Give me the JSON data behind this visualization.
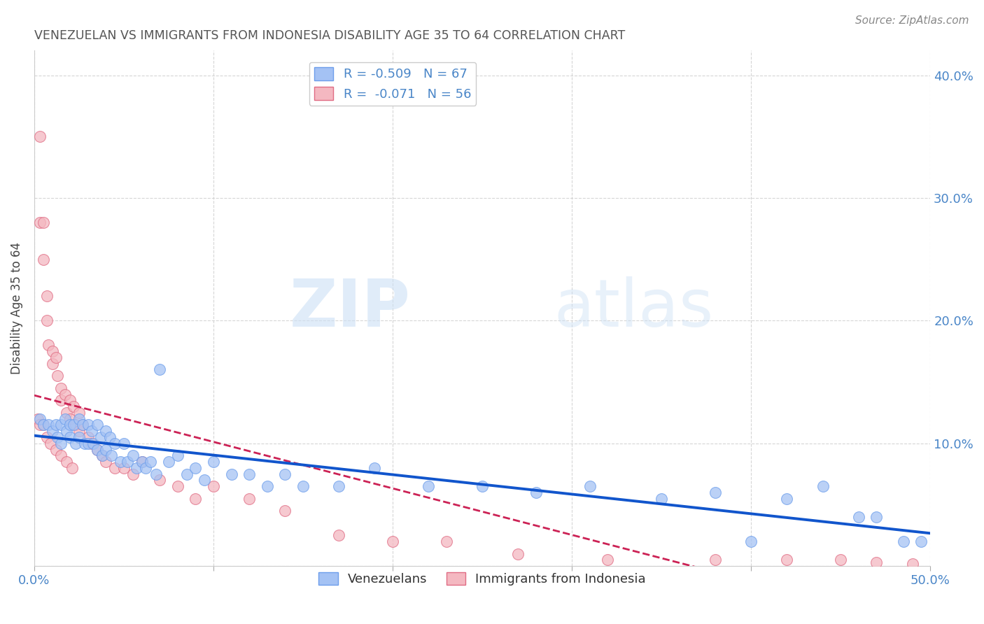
{
  "title": "VENEZUELAN VS IMMIGRANTS FROM INDONESIA DISABILITY AGE 35 TO 64 CORRELATION CHART",
  "source": "Source: ZipAtlas.com",
  "ylabel": "Disability Age 35 to 64",
  "xlim": [
    0.0,
    0.5
  ],
  "ylim": [
    0.0,
    0.42
  ],
  "blue_color": "#a4c2f4",
  "blue_edge": "#6d9eeb",
  "pink_color": "#f4b8c1",
  "pink_edge": "#e06c84",
  "blue_line_color": "#1155cc",
  "pink_line_color": "#cc2255",
  "legend_blue_label": "R = -0.509   N = 67",
  "legend_pink_label": "R =  -0.071   N = 56",
  "venezualan_label": "Venezuelans",
  "indonesia_label": "Immigrants from Indonesia",
  "watermark_zip": "ZIP",
  "watermark_atlas": "atlas",
  "title_color": "#555555",
  "axis_color": "#4a86c8",
  "venezuelan_x": [
    0.003,
    0.005,
    0.008,
    0.01,
    0.012,
    0.013,
    0.015,
    0.015,
    0.017,
    0.018,
    0.02,
    0.02,
    0.022,
    0.023,
    0.025,
    0.025,
    0.027,
    0.028,
    0.03,
    0.03,
    0.032,
    0.033,
    0.035,
    0.035,
    0.037,
    0.038,
    0.04,
    0.04,
    0.042,
    0.043,
    0.045,
    0.048,
    0.05,
    0.052,
    0.055,
    0.057,
    0.06,
    0.062,
    0.065,
    0.068,
    0.07,
    0.075,
    0.08,
    0.085,
    0.09,
    0.095,
    0.1,
    0.11,
    0.12,
    0.13,
    0.14,
    0.15,
    0.17,
    0.19,
    0.22,
    0.25,
    0.28,
    0.31,
    0.35,
    0.38,
    0.4,
    0.42,
    0.44,
    0.46,
    0.47,
    0.485,
    0.495
  ],
  "venezuelan_y": [
    0.12,
    0.115,
    0.115,
    0.11,
    0.115,
    0.105,
    0.115,
    0.1,
    0.12,
    0.11,
    0.115,
    0.105,
    0.115,
    0.1,
    0.12,
    0.105,
    0.115,
    0.1,
    0.115,
    0.1,
    0.11,
    0.1,
    0.115,
    0.095,
    0.105,
    0.09,
    0.11,
    0.095,
    0.105,
    0.09,
    0.1,
    0.085,
    0.1,
    0.085,
    0.09,
    0.08,
    0.085,
    0.08,
    0.085,
    0.075,
    0.16,
    0.085,
    0.09,
    0.075,
    0.08,
    0.07,
    0.085,
    0.075,
    0.075,
    0.065,
    0.075,
    0.065,
    0.065,
    0.08,
    0.065,
    0.065,
    0.06,
    0.065,
    0.055,
    0.06,
    0.02,
    0.055,
    0.065,
    0.04,
    0.04,
    0.02,
    0.02
  ],
  "indonesian_x": [
    0.003,
    0.003,
    0.005,
    0.005,
    0.007,
    0.007,
    0.008,
    0.01,
    0.01,
    0.012,
    0.013,
    0.015,
    0.015,
    0.017,
    0.018,
    0.02,
    0.02,
    0.022,
    0.023,
    0.025,
    0.025,
    0.027,
    0.03,
    0.032,
    0.035,
    0.038,
    0.04,
    0.045,
    0.05,
    0.055,
    0.06,
    0.07,
    0.08,
    0.09,
    0.1,
    0.12,
    0.14,
    0.17,
    0.2,
    0.23,
    0.27,
    0.32,
    0.38,
    0.42,
    0.45,
    0.47,
    0.49,
    0.002,
    0.003,
    0.005,
    0.007,
    0.009,
    0.012,
    0.015,
    0.018,
    0.021
  ],
  "indonesian_y": [
    0.35,
    0.28,
    0.28,
    0.25,
    0.22,
    0.2,
    0.18,
    0.175,
    0.165,
    0.17,
    0.155,
    0.145,
    0.135,
    0.14,
    0.125,
    0.135,
    0.12,
    0.13,
    0.115,
    0.125,
    0.11,
    0.115,
    0.105,
    0.1,
    0.095,
    0.09,
    0.085,
    0.08,
    0.08,
    0.075,
    0.085,
    0.07,
    0.065,
    0.055,
    0.065,
    0.055,
    0.045,
    0.025,
    0.02,
    0.02,
    0.01,
    0.005,
    0.005,
    0.005,
    0.005,
    0.003,
    0.002,
    0.12,
    0.115,
    0.115,
    0.105,
    0.1,
    0.095,
    0.09,
    0.085,
    0.08
  ]
}
